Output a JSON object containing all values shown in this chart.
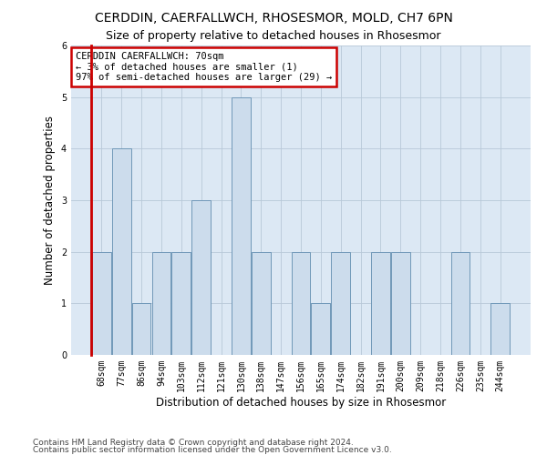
{
  "title1": "CERDDIN, CAERFALLWCH, RHOSESMOR, MOLD, CH7 6PN",
  "title2": "Size of property relative to detached houses in Rhosesmor",
  "xlabel": "Distribution of detached houses by size in Rhosesmor",
  "ylabel": "Number of detached properties",
  "categories": [
    "68sqm",
    "77sqm",
    "86sqm",
    "94sqm",
    "103sqm",
    "112sqm",
    "121sqm",
    "130sqm",
    "138sqm",
    "147sqm",
    "156sqm",
    "165sqm",
    "174sqm",
    "182sqm",
    "191sqm",
    "200sqm",
    "209sqm",
    "218sqm",
    "226sqm",
    "235sqm",
    "244sqm"
  ],
  "values": [
    2,
    4,
    1,
    2,
    2,
    3,
    0,
    5,
    2,
    0,
    2,
    1,
    2,
    0,
    2,
    2,
    0,
    0,
    2,
    0,
    1
  ],
  "bar_color": "#ccdcec",
  "bar_edge_color": "#7098b8",
  "annotation_box_facecolor": "#ffffff",
  "annotation_border_color": "#cc0000",
  "annotation_text": "CERDDIN CAERFALLWCH: 70sqm\n← 3% of detached houses are smaller (1)\n97% of semi-detached houses are larger (29) →",
  "ylim": [
    0,
    6
  ],
  "yticks": [
    0,
    1,
    2,
    3,
    4,
    5,
    6
  ],
  "grid_color": "#b8c8d8",
  "bg_color": "#dce8f4",
  "footer1": "Contains HM Land Registry data © Crown copyright and database right 2024.",
  "footer2": "Contains public sector information licensed under the Open Government Licence v3.0.",
  "red_line_color": "#cc0000",
  "title1_fontsize": 10,
  "title2_fontsize": 9,
  "ann_fontsize": 7.5,
  "tick_fontsize": 7,
  "ylabel_fontsize": 8.5,
  "xlabel_fontsize": 8.5,
  "footer_fontsize": 6.5
}
